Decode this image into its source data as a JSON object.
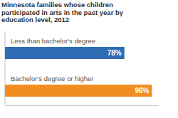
{
  "chart_data": {
    "type": "bar",
    "orientation": "horizontal",
    "title": "Minnesota families whose children participated in arts in the past year by education level, 2012",
    "categories": [
      "Less than bachelor's degree",
      "Bachelor's degree or higher"
    ],
    "values": [
      78,
      96
    ],
    "value_labels": [
      "78%",
      "96%"
    ],
    "colors": [
      "#2e6db4",
      "#f28e1f"
    ],
    "xlim": [
      0,
      100
    ],
    "data_labels": true,
    "tick_labels": false,
    "grid": false
  }
}
